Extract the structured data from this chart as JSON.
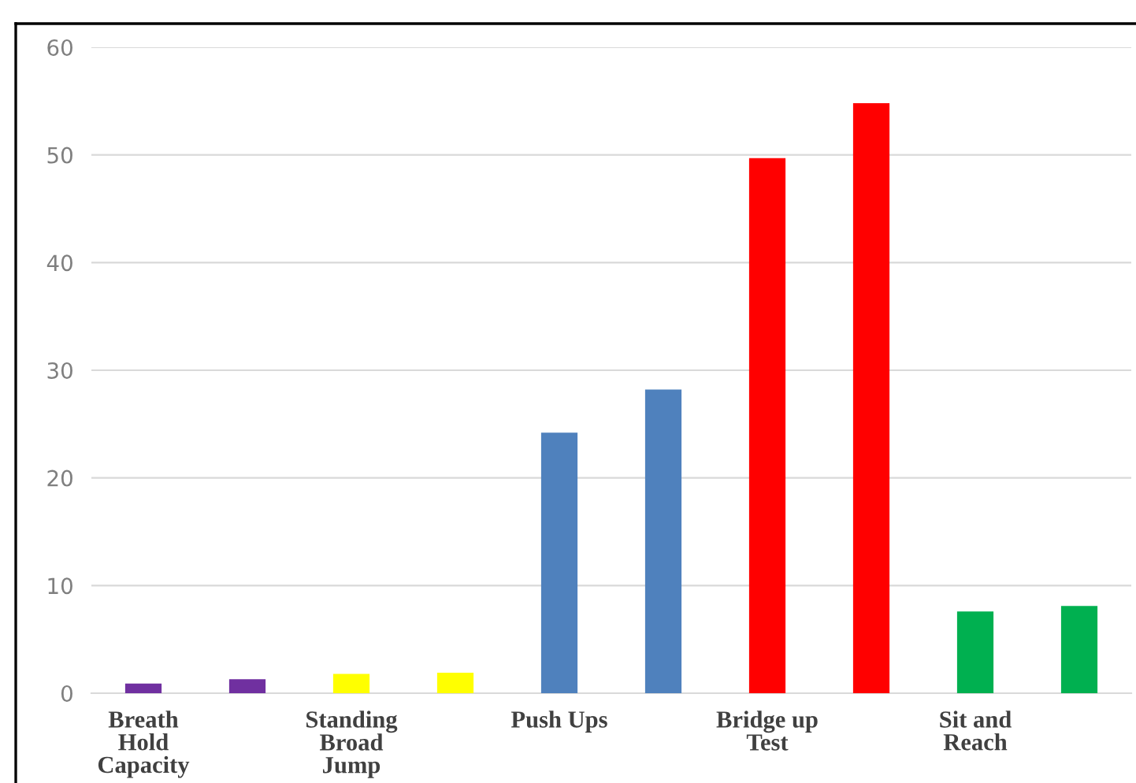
{
  "chart_data": {
    "type": "bar",
    "categories": [
      "Breath\nHold\nCapacity",
      null,
      "Standing\nBroad\nJump",
      null,
      "Push Ups",
      null,
      "Bridge up\nTest",
      null,
      "Sit and\nReach",
      null
    ],
    "values": [
      0.9,
      1.3,
      1.8,
      1.9,
      24.2,
      28.2,
      49.7,
      54.8,
      7.6,
      8.1
    ],
    "colors": [
      "#7030a0",
      "#7030a0",
      "#ffff00",
      "#ffff00",
      "#4f81bd",
      "#4f81bd",
      "#ff0000",
      "#ff0000",
      "#00b050",
      "#00b050"
    ],
    "ylim": [
      0,
      60
    ],
    "yticks": [
      0,
      10,
      20,
      30,
      40,
      50,
      60
    ],
    "grid": "y"
  }
}
